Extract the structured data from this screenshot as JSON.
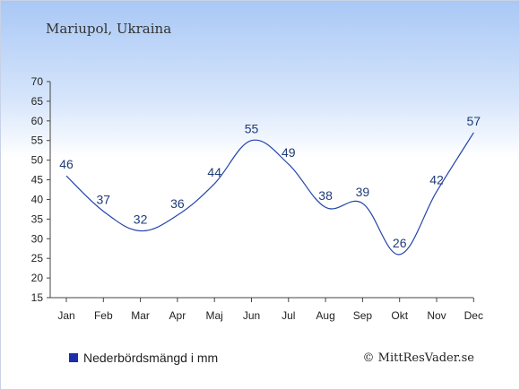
{
  "title": "Mariupol, Ukraina",
  "legend_label": "Nederbördsmängd i mm",
  "credit": "© MittResVader.se",
  "colors": {
    "line": "#2244aa",
    "legend_swatch": "#1a2fa8",
    "label": "#1f3b78"
  },
  "chart_data": {
    "type": "line",
    "title": "Mariupol, Ukraina",
    "categories": [
      "Jan",
      "Feb",
      "Mar",
      "Apr",
      "Maj",
      "Jun",
      "Jul",
      "Aug",
      "Sep",
      "Okt",
      "Nov",
      "Dec"
    ],
    "series": [
      {
        "name": "Nederbördsmängd i mm",
        "values": [
          46,
          37,
          32,
          36,
          44,
          55,
          49,
          38,
          39,
          26,
          42,
          57
        ]
      }
    ],
    "ylim": [
      15,
      70
    ],
    "yticks": [
      15,
      20,
      25,
      30,
      35,
      40,
      45,
      50,
      55,
      60,
      65,
      70
    ],
    "grid": false,
    "legend": "bottom-left",
    "smooth": true
  }
}
